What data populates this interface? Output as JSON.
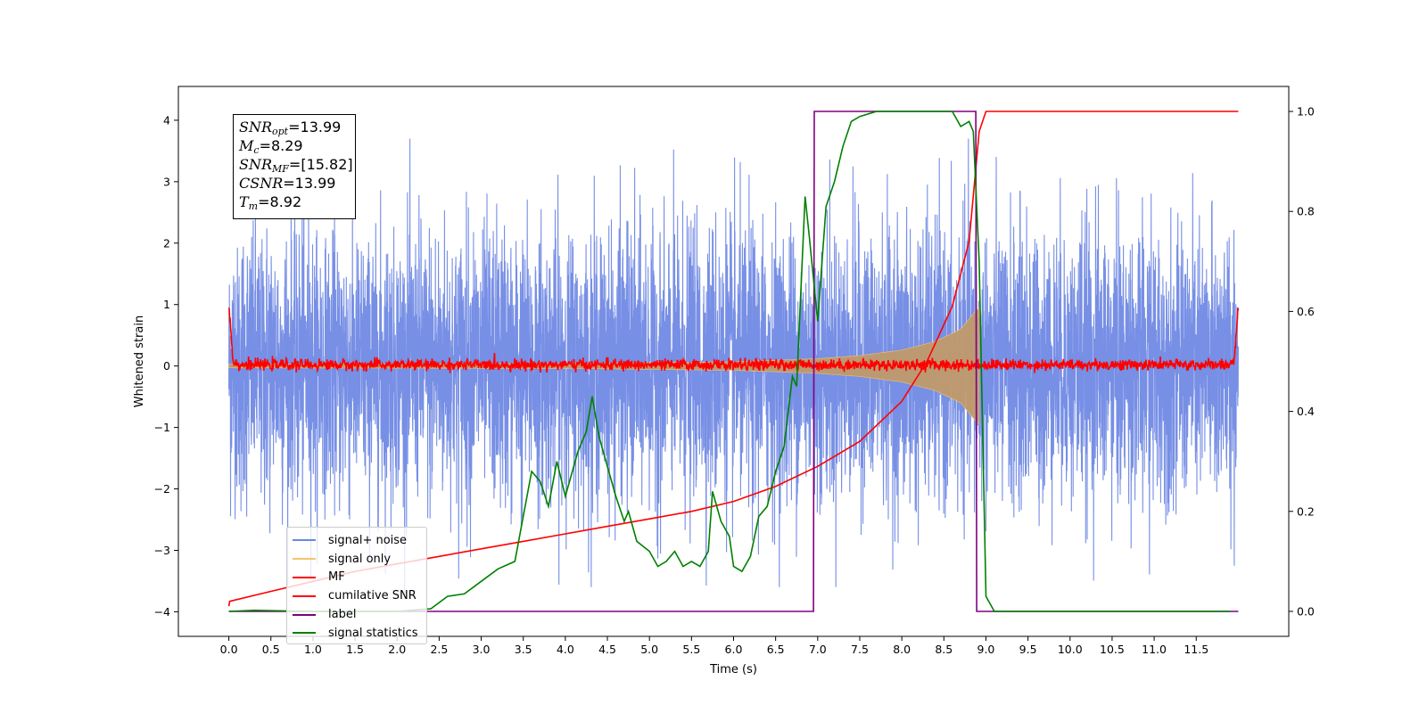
{
  "chart_data": {
    "type": "line",
    "xlabel": "Time (s)",
    "ylabel": "Whitened strain",
    "xlim": [
      -0.6,
      12.6
    ],
    "ylim": [
      -4.4,
      4.55
    ],
    "y2lim": [
      -0.05,
      1.05
    ],
    "xticks": [
      "0.0",
      "0.5",
      "1.0",
      "1.5",
      "2.0",
      "2.5",
      "3.0",
      "3.5",
      "4.0",
      "4.5",
      "5.0",
      "5.5",
      "6.0",
      "6.5",
      "7.0",
      "7.5",
      "8.0",
      "8.5",
      "9.0",
      "9.5",
      "10.0",
      "10.5",
      "11.0",
      "11.5"
    ],
    "yticks": [
      "4",
      "3",
      "2",
      "1",
      "0",
      "−1",
      "−2",
      "−3",
      "−4"
    ],
    "y2ticks": [
      "1.0",
      "0.8",
      "0.6",
      "0.4",
      "0.2",
      "0.0"
    ],
    "grid": false,
    "legend_position": "lower-left",
    "series": [
      {
        "name": "signal+ noise",
        "color": "#6b86e3",
        "axis": "left",
        "description_values": {
          "t_start": 0.0,
          "t_end": 12.0,
          "typical_amplitude": 1.2,
          "max": 3.7,
          "min": -3.8
        }
      },
      {
        "name": "signal only",
        "color": "#f5c46e",
        "axis": "left",
        "x": [
          0.0,
          4.0,
          6.0,
          7.0,
          7.5,
          8.0,
          8.4,
          8.7,
          8.85,
          8.92
        ],
        "y_envelope": [
          0.03,
          0.04,
          0.07,
          0.12,
          0.17,
          0.26,
          0.4,
          0.6,
          0.85,
          0.95
        ]
      },
      {
        "name": "MF",
        "color": "#ff0000",
        "axis": "left",
        "x": [
          0.0,
          0.05,
          0.1,
          11.9,
          11.95,
          12.0
        ],
        "y": [
          1.0,
          0.1,
          0.02,
          0.02,
          0.1,
          0.95
        ]
      },
      {
        "name": "cumilative SNR",
        "color": "#ff0000",
        "axis": "right",
        "x": [
          0.0,
          0.01,
          0.5,
          1.0,
          1.5,
          2.0,
          2.5,
          3.0,
          3.5,
          4.0,
          4.5,
          5.0,
          5.5,
          6.0,
          6.5,
          7.0,
          7.5,
          8.0,
          8.3,
          8.6,
          8.8,
          8.92,
          9.0,
          12.0
        ],
        "y": [
          0.01,
          0.02,
          0.04,
          0.06,
          0.08,
          0.095,
          0.11,
          0.125,
          0.14,
          0.155,
          0.17,
          0.185,
          0.2,
          0.22,
          0.25,
          0.29,
          0.34,
          0.42,
          0.5,
          0.61,
          0.74,
          0.96,
          1.0,
          1.0
        ]
      },
      {
        "name": "label",
        "color": "#800080",
        "axis": "right",
        "x": [
          0.0,
          6.95,
          6.96,
          8.88,
          8.89,
          12.0
        ],
        "y": [
          0.0,
          0.0,
          1.0,
          1.0,
          0.0,
          0.0
        ]
      },
      {
        "name": "signal statistics",
        "color": "#008000",
        "axis": "right",
        "x": [
          0.0,
          0.3,
          1.0,
          2.0,
          2.4,
          2.6,
          2.8,
          3.0,
          3.2,
          3.4,
          3.6,
          3.7,
          3.8,
          3.9,
          4.0,
          4.15,
          4.25,
          4.32,
          4.4,
          4.5,
          4.6,
          4.7,
          4.75,
          4.85,
          5.0,
          5.1,
          5.2,
          5.3,
          5.4,
          5.5,
          5.6,
          5.7,
          5.75,
          5.85,
          5.95,
          6.0,
          6.1,
          6.2,
          6.3,
          6.4,
          6.5,
          6.6,
          6.7,
          6.75,
          6.85,
          6.9,
          7.0,
          7.1,
          7.2,
          7.3,
          7.4,
          7.5,
          7.7,
          8.0,
          8.4,
          8.6,
          8.7,
          8.8,
          8.85,
          8.92,
          9.0,
          9.1,
          11.9
        ],
        "y": [
          0.0,
          0.002,
          0.0,
          0.0,
          0.005,
          0.03,
          0.035,
          0.06,
          0.085,
          0.1,
          0.28,
          0.26,
          0.21,
          0.3,
          0.23,
          0.32,
          0.36,
          0.43,
          0.35,
          0.29,
          0.23,
          0.18,
          0.2,
          0.14,
          0.12,
          0.09,
          0.1,
          0.12,
          0.09,
          0.1,
          0.09,
          0.12,
          0.24,
          0.18,
          0.15,
          0.09,
          0.08,
          0.11,
          0.19,
          0.21,
          0.28,
          0.33,
          0.47,
          0.45,
          0.83,
          0.75,
          0.58,
          0.81,
          0.86,
          0.93,
          0.98,
          0.99,
          1.0,
          1.0,
          1.0,
          1.0,
          0.97,
          0.98,
          0.96,
          0.7,
          0.03,
          0.0,
          0.0
        ]
      }
    ]
  },
  "infobox": {
    "snr_opt": "=13.99",
    "mc": "=8.29",
    "snr_mf": "=[15.82]",
    "csnr": "=13.99",
    "tm": "=8.92",
    "label_snr": "SNR",
    "sub_opt": "opt",
    "label_m": "M",
    "sub_c": "c",
    "sub_mf": "MF",
    "label_csnr": "CSNR",
    "label_t": "T",
    "sub_m": "m"
  },
  "legend": {
    "items": [
      {
        "label": "signal+ noise",
        "color": "#6b86e3"
      },
      {
        "label": "signal only",
        "color": "#f5c46e"
      },
      {
        "label": "MF",
        "color": "#ff0000"
      },
      {
        "label": "cumilative SNR",
        "color": "#ff0000"
      },
      {
        "label": "label",
        "color": "#800080"
      },
      {
        "label": "signal statistics",
        "color": "#008000"
      }
    ]
  }
}
